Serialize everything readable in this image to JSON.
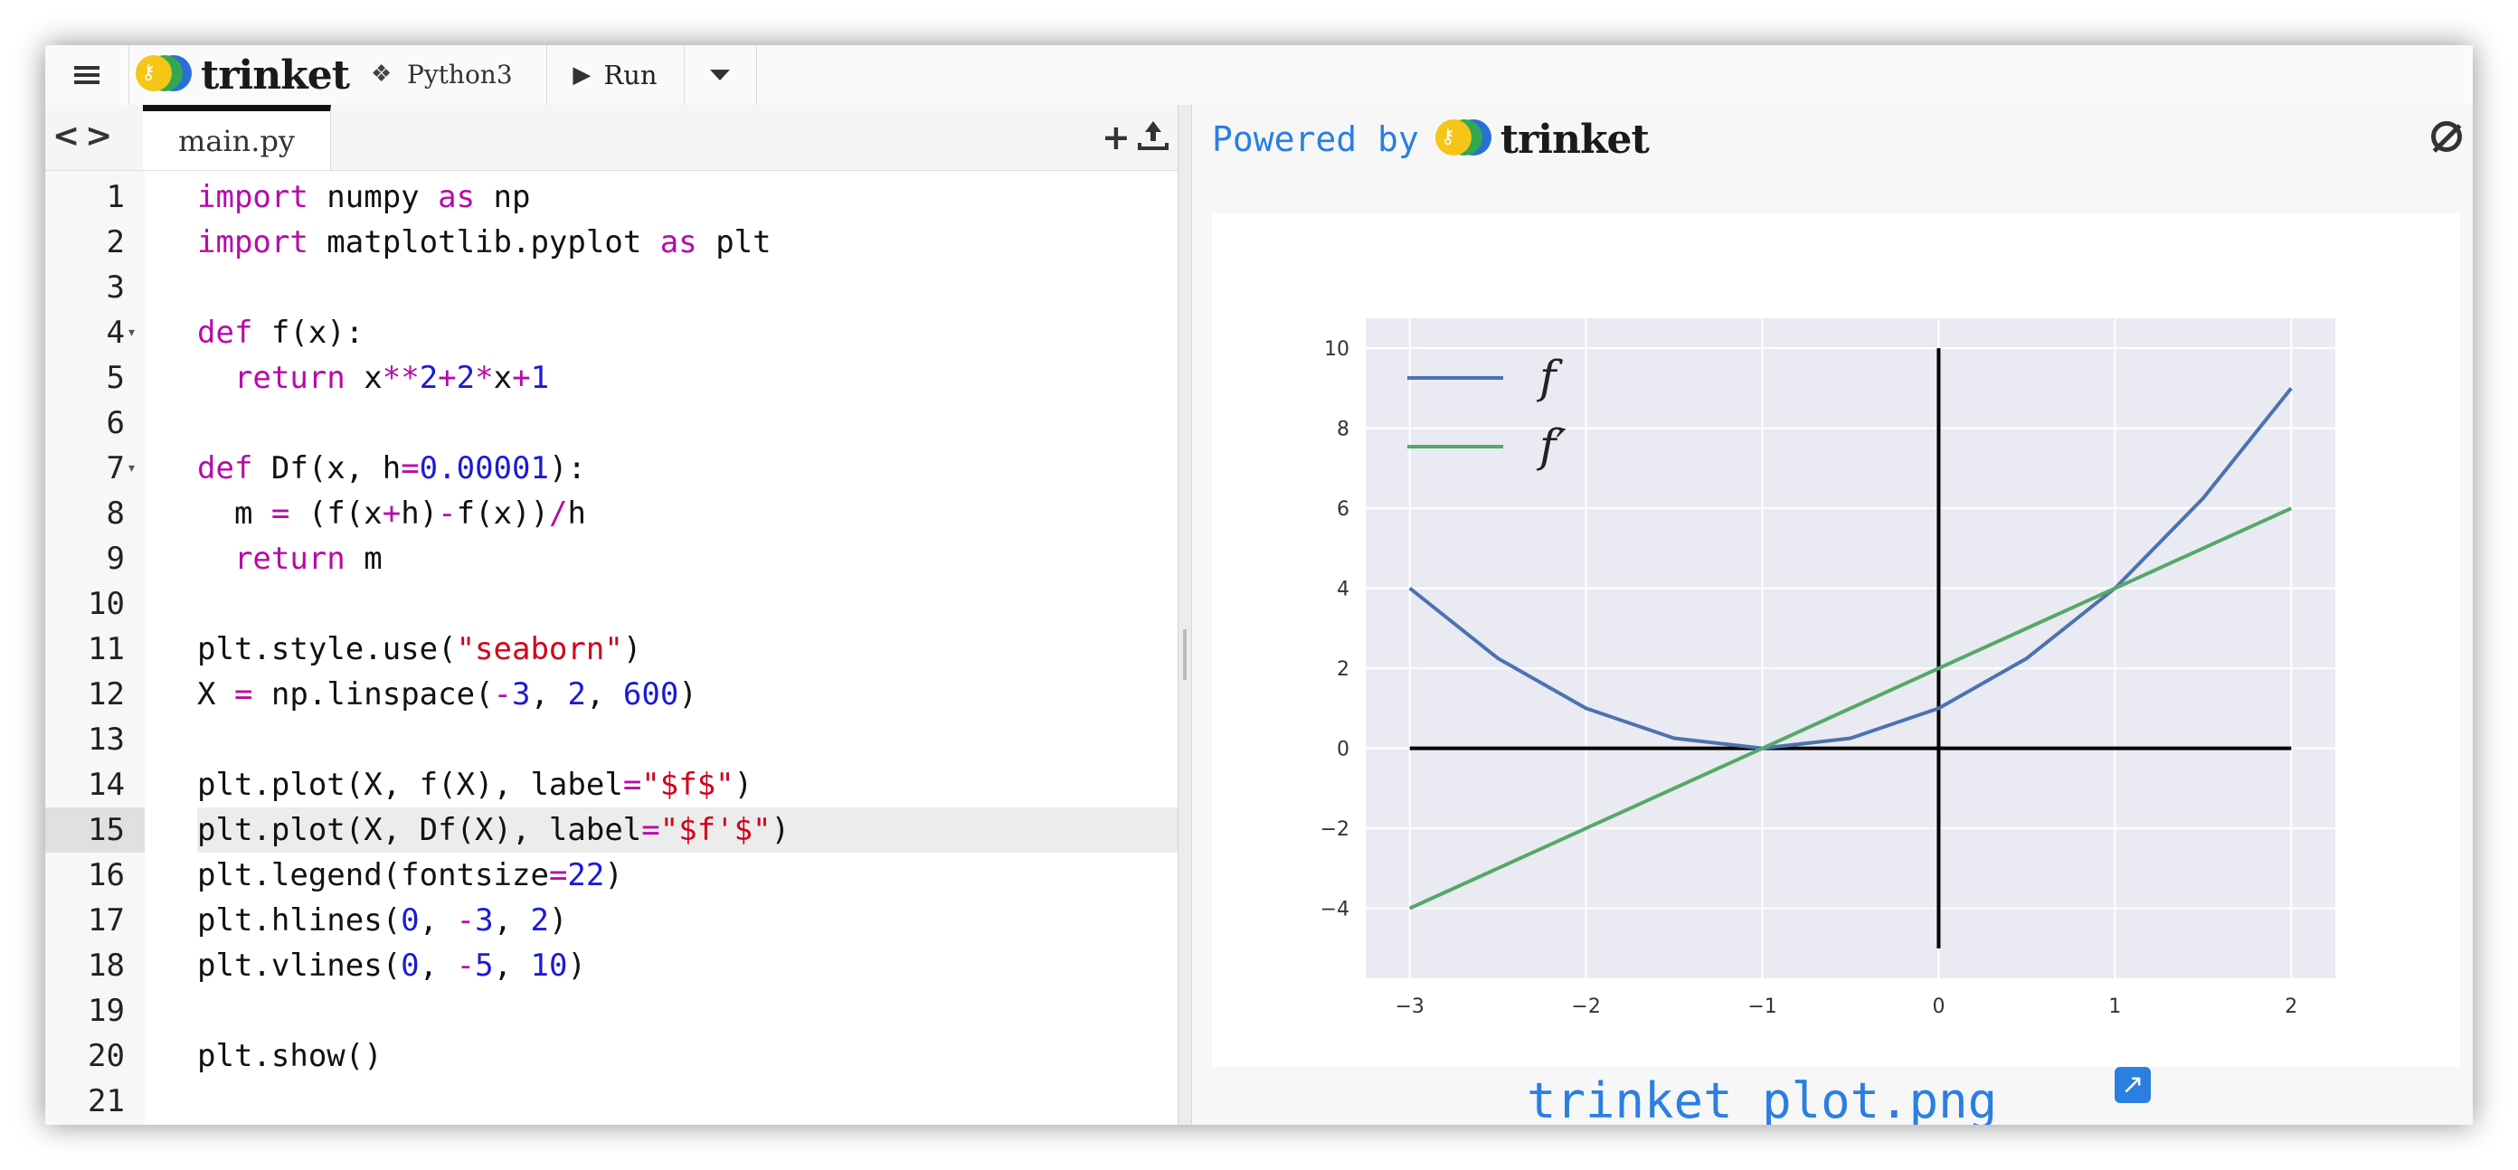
{
  "toolbar": {
    "brand": "trinket",
    "language": "Python3",
    "run_label": "Run"
  },
  "editor": {
    "file_tab": "main.py",
    "lines": [
      "import numpy as np",
      "import matplotlib.pyplot as plt",
      "",
      "def f(x):",
      "  return x**2+2*x+1",
      "",
      "def Df(x, h=0.00001):",
      "  m = (f(x+h)-f(x))/h",
      "  return m",
      "",
      "plt.style.use(\"seaborn\")",
      "X = np.linspace(-3, 2, 600)",
      "",
      "plt.plot(X, f(X), label=\"$f$\")",
      "plt.plot(X, Df(X), label=\"$f'$\")",
      "plt.legend(fontsize=22)",
      "plt.hlines(0, -3, 2)",
      "plt.vlines(0, -5, 10)",
      "",
      "plt.show()",
      ""
    ],
    "active_line": 15
  },
  "output": {
    "powered_by": "Powered by",
    "brand": "trinket",
    "file_link": "trinket_plot.png"
  },
  "chart_data": {
    "type": "line",
    "title": "",
    "xlabel": "",
    "ylabel": "",
    "xlim": [
      -3.25,
      2.25
    ],
    "ylim": [
      -5.75,
      10.75
    ],
    "grid": true,
    "legend_position": "top-left",
    "xticks": [
      -3,
      -2,
      -1,
      0,
      1,
      2
    ],
    "yticks": [
      -4,
      -2,
      0,
      2,
      4,
      6,
      8,
      10
    ],
    "series": [
      {
        "name": "f",
        "color": "#4c72b0",
        "x": [
          -3,
          -2.5,
          -2,
          -1.5,
          -1,
          -0.5,
          0,
          0.5,
          1,
          1.5,
          2
        ],
        "y": [
          4,
          2.25,
          1,
          0.25,
          0,
          0.25,
          1,
          2.25,
          4,
          6.25,
          9
        ]
      },
      {
        "name": "f′",
        "color": "#55a868",
        "x": [
          -3,
          2
        ],
        "y": [
          -4,
          6
        ]
      }
    ],
    "hlines": [
      {
        "y": 0,
        "xmin": -3,
        "xmax": 2
      }
    ],
    "vlines": [
      {
        "x": 0,
        "ymin": -5,
        "ymax": 10
      }
    ]
  }
}
